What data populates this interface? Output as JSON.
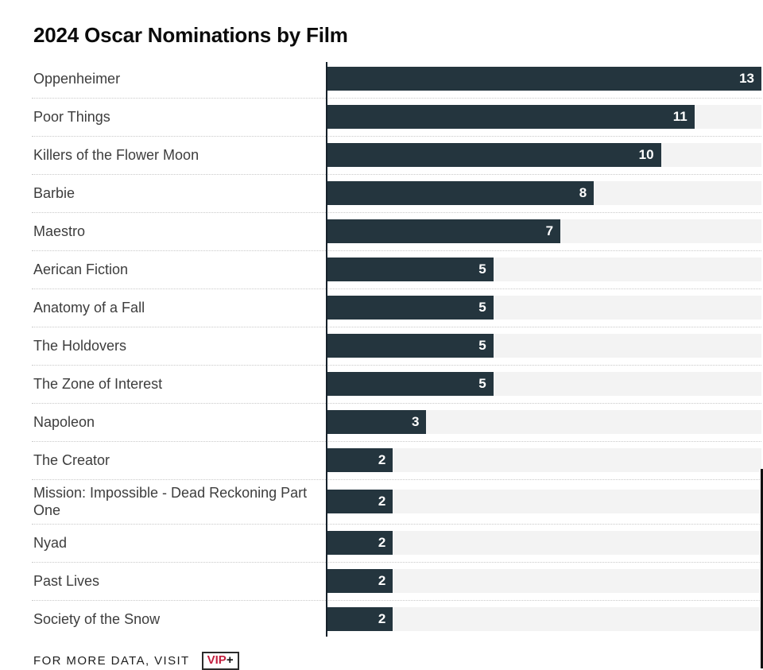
{
  "page": {
    "title": "2024 Oscar Nominations by Film"
  },
  "footer": {
    "text": "FOR MORE DATA, VISIT",
    "badge": {
      "vip": "VIP",
      "plus": "+"
    }
  },
  "colors": {
    "bar": "#24353e",
    "track": "#f3f3f3",
    "axis": "#16212a",
    "vip_red": "#c31e3d",
    "label_text": "#3d3d3d"
  },
  "chart_data": {
    "type": "bar",
    "orientation": "horizontal",
    "title": "2024 Oscar Nominations by Film",
    "categories": [
      "Oppenheimer",
      "Poor Things",
      "Killers of the Flower Moon",
      "Barbie",
      "Maestro",
      "Aerican Fiction",
      "Anatomy of a Fall",
      "The Holdovers",
      "The Zone of Interest",
      "Napoleon",
      "The Creator",
      "Mission: Impossible - Dead Reckoning Part One",
      "Nyad",
      "Past Lives",
      "Society of the Snow"
    ],
    "values": [
      13,
      11,
      10,
      8,
      7,
      5,
      5,
      5,
      5,
      3,
      2,
      2,
      2,
      2,
      2
    ],
    "xlabel": "",
    "ylabel": "",
    "xlim": [
      0,
      13
    ],
    "grid": false,
    "legend": "none",
    "value_labels": "inside-end-white-bold"
  }
}
